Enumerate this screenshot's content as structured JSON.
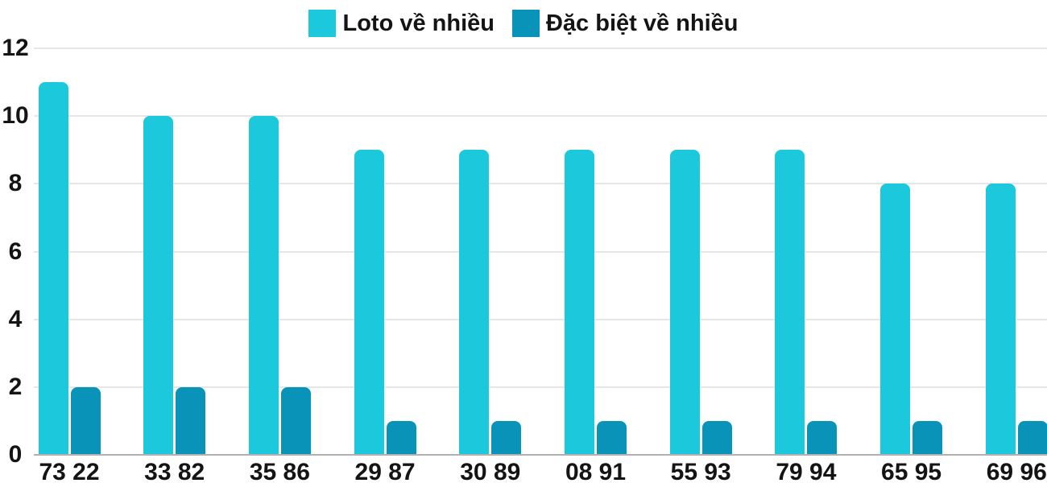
{
  "chart": {
    "background_color": "#ffffff",
    "text_color": "#141414",
    "gridline_color": "#e6e6e6",
    "baseline_color": "#b0b0b0"
  },
  "legend": {
    "items": [
      {
        "label": "Loto về nhiều",
        "color": "#1cc8dc"
      },
      {
        "label": "Đặc biệt về nhiều",
        "color": "#0a93b8"
      }
    ]
  },
  "chart_data": {
    "type": "bar",
    "title": "",
    "xlabel": "",
    "ylabel": "",
    "categories": [
      "73 22",
      "33 82",
      "35 86",
      "29 87",
      "30 89",
      "08 91",
      "55 93",
      "79 94",
      "65 95",
      "69 96"
    ],
    "series": [
      {
        "name": "Loto về nhiều",
        "color": "#1cc8dc",
        "values": [
          11,
          10,
          10,
          9,
          9,
          9,
          9,
          9,
          8,
          8
        ]
      },
      {
        "name": "Đặc biệt về nhiều",
        "color": "#0a93b8",
        "values": [
          2,
          2,
          2,
          1,
          1,
          1,
          1,
          1,
          1,
          1
        ]
      }
    ],
    "ylim": [
      0,
      12
    ],
    "yticks": [
      0,
      2,
      4,
      6,
      8,
      10,
      12
    ],
    "grid": true,
    "legend_position": "top-center"
  }
}
